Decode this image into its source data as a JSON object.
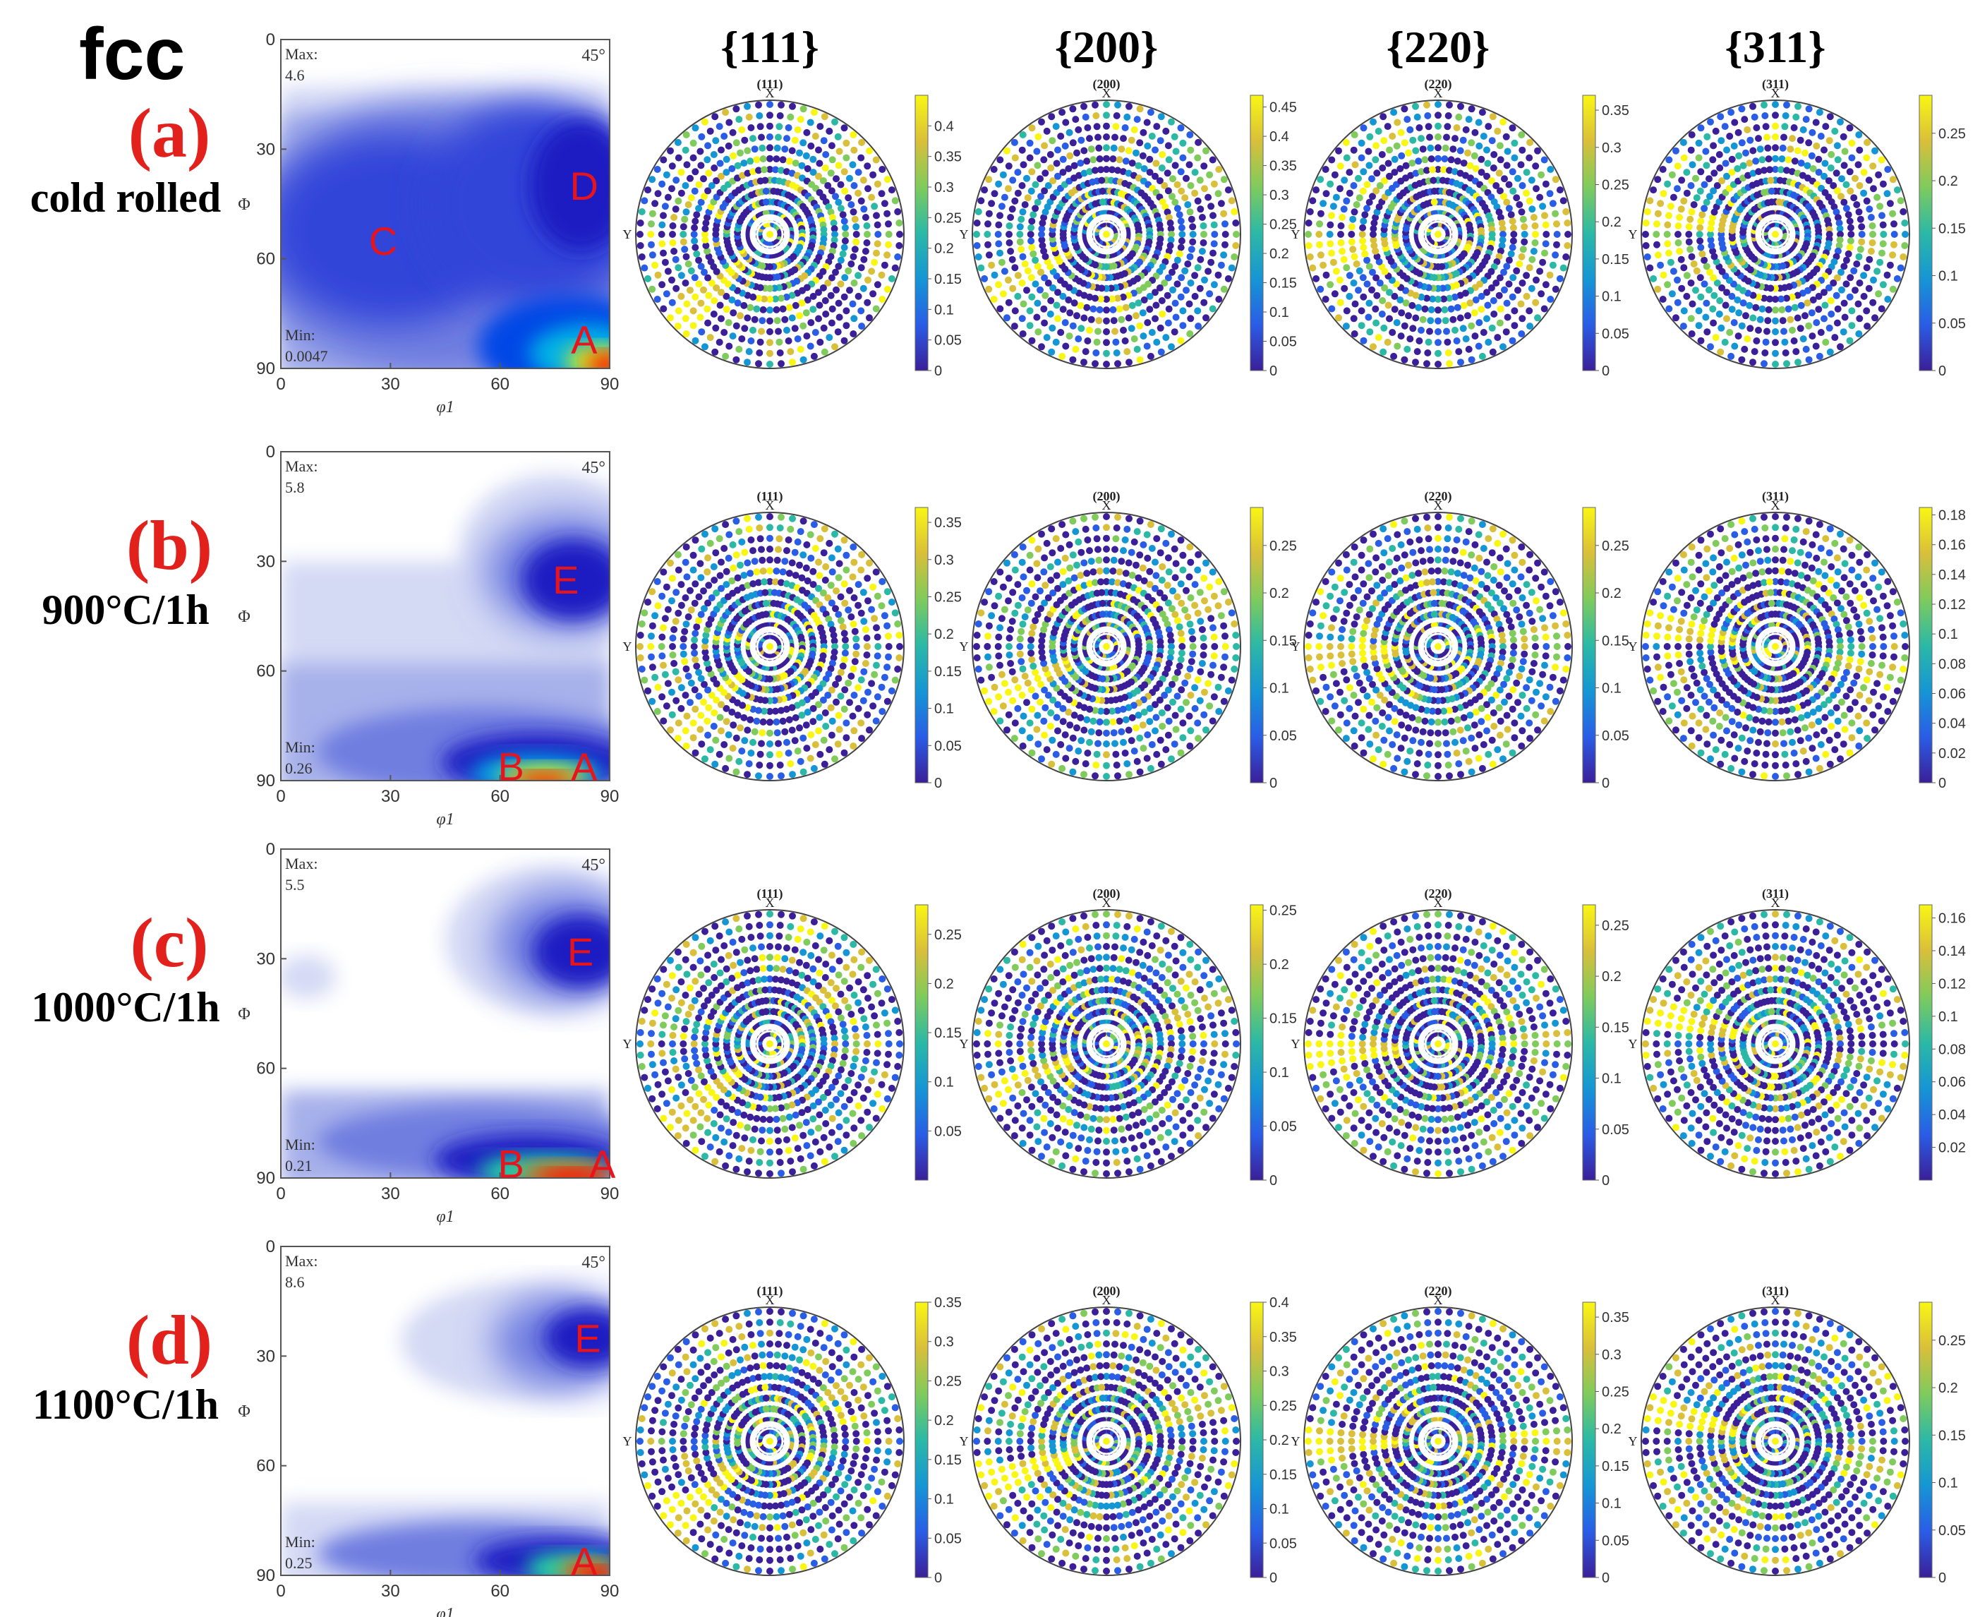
{
  "figure": {
    "phase_label": "fcc",
    "column_headers": [
      "{111}",
      "{200}",
      "{220}",
      "{311}"
    ],
    "odf_axes": {
      "x_label": "φ1",
      "y_label": "Φ",
      "x_ticks": [
        "0",
        "30",
        "60",
        "90"
      ],
      "y_ticks": [
        "0",
        "30",
        "60",
        "90"
      ],
      "section_label": "45°"
    },
    "pole_figure_axes": {
      "x_label": "X",
      "y_label": "Y"
    },
    "colormap": [
      "#3b1f99",
      "#2a5de6",
      "#1596d4",
      "#2bb9a6",
      "#7fcb5c",
      "#d9bf3a",
      "#f9f614"
    ],
    "odf_colormap": [
      "#ffffff",
      "#d4d9f4",
      "#a7b1ea",
      "#6f7ee0",
      "#3344d9",
      "#1a1fc2",
      "#0047e6",
      "#00b2e6",
      "#20f0a0",
      "#f4f000",
      "#ff5500",
      "#ff0000"
    ],
    "rows": [
      {
        "tag": "(a)",
        "condition": "cold rolled",
        "odf": {
          "max_label": "Max:",
          "max_value": "4.6",
          "min_label": "Min:",
          "min_value": "0.0047",
          "components": [
            {
              "letter": "D",
              "phi1": 83,
              "Phi": 40
            },
            {
              "letter": "C",
              "phi1": 28,
              "Phi": 55
            },
            {
              "letter": "A",
              "phi1": 83,
              "Phi": 82
            }
          ]
        },
        "pole_figures": [
          {
            "title": "(111)",
            "colorbar_ticks": [
              "0.4",
              "0.35",
              "0.3",
              "0.25",
              "0.2",
              "0.15",
              "0.1",
              "0.05",
              "0"
            ],
            "max": 0.45
          },
          {
            "title": "(200)",
            "colorbar_ticks": [
              "0.45",
              "0.4",
              "0.35",
              "0.3",
              "0.25",
              "0.2",
              "0.15",
              "0.1",
              "0.05",
              "0"
            ],
            "max": 0.47
          },
          {
            "title": "(220)",
            "colorbar_ticks": [
              "0.35",
              "0.3",
              "0.25",
              "0.2",
              "0.15",
              "0.1",
              "0.05",
              "0"
            ],
            "max": 0.37
          },
          {
            "title": "(311)",
            "colorbar_ticks": [
              "0.25",
              "0.2",
              "0.15",
              "0.1",
              "0.05",
              "0"
            ],
            "max": 0.29
          }
        ]
      },
      {
        "tag": "(b)",
        "condition": "900°C/1h",
        "odf": {
          "max_label": "Max:",
          "max_value": "5.8",
          "min_label": "Min:",
          "min_value": "0.26",
          "components": [
            {
              "letter": "E",
              "phi1": 78,
              "Phi": 35
            },
            {
              "letter": "B",
              "phi1": 63,
              "Phi": 86
            },
            {
              "letter": "A",
              "phi1": 83,
              "Phi": 86
            }
          ]
        },
        "pole_figures": [
          {
            "title": "(111)",
            "colorbar_ticks": [
              "0.35",
              "0.3",
              "0.25",
              "0.2",
              "0.15",
              "0.1",
              "0.05",
              "0"
            ],
            "max": 0.37
          },
          {
            "title": "(200)",
            "colorbar_ticks": [
              "0.25",
              "0.2",
              "0.15",
              "0.1",
              "0.05",
              "0"
            ],
            "max": 0.29
          },
          {
            "title": "(220)",
            "colorbar_ticks": [
              "0.25",
              "0.2",
              "0.15",
              "0.1",
              "0.05",
              "0"
            ],
            "max": 0.29
          },
          {
            "title": "(311)",
            "colorbar_ticks": [
              "0.18",
              "0.16",
              "0.14",
              "0.12",
              "0.1",
              "0.08",
              "0.06",
              "0.04",
              "0.02",
              "0"
            ],
            "max": 0.185
          }
        ]
      },
      {
        "tag": "(c)",
        "condition": "1000°C/1h",
        "odf": {
          "max_label": "Max:",
          "max_value": "5.5",
          "min_label": "Min:",
          "min_value": "0.21",
          "components": [
            {
              "letter": "E",
              "phi1": 82,
              "Phi": 28
            },
            {
              "letter": "B",
              "phi1": 63,
              "Phi": 86
            },
            {
              "letter": "A",
              "phi1": 88,
              "Phi": 86
            }
          ]
        },
        "pole_figures": [
          {
            "title": "(111)",
            "colorbar_ticks": [
              "0.25",
              "0.2",
              "0.15",
              "0.1",
              "0.05"
            ],
            "max": 0.28
          },
          {
            "title": "(200)",
            "colorbar_ticks": [
              "0.25",
              "0.2",
              "0.15",
              "0.1",
              "0.05",
              "0"
            ],
            "max": 0.255
          },
          {
            "title": "(220)",
            "colorbar_ticks": [
              "0.25",
              "0.2",
              "0.15",
              "0.1",
              "0.05",
              "0"
            ],
            "max": 0.27
          },
          {
            "title": "(311)",
            "colorbar_ticks": [
              "0.16",
              "0.14",
              "0.12",
              "0.1",
              "0.08",
              "0.06",
              "0.04",
              "0.02"
            ],
            "max": 0.168
          }
        ]
      },
      {
        "tag": "(d)",
        "condition": "1100°C/1h",
        "odf": {
          "max_label": "Max:",
          "max_value": "8.6",
          "min_label": "Min:",
          "min_value": "0.25",
          "components": [
            {
              "letter": "E",
              "phi1": 84,
              "Phi": 25
            },
            {
              "letter": "A",
              "phi1": 83,
              "Phi": 86
            }
          ]
        },
        "pole_figures": [
          {
            "title": "(111)",
            "colorbar_ticks": [
              "0.35",
              "0.3",
              "0.25",
              "0.2",
              "0.15",
              "0.1",
              "0.05",
              "0"
            ],
            "max": 0.35
          },
          {
            "title": "(200)",
            "colorbar_ticks": [
              "0.4",
              "0.35",
              "0.3",
              "0.25",
              "0.2",
              "0.15",
              "0.1",
              "0.05",
              "0"
            ],
            "max": 0.4
          },
          {
            "title": "(220)",
            "colorbar_ticks": [
              "0.35",
              "0.3",
              "0.25",
              "0.2",
              "0.15",
              "0.1",
              "0.05",
              "0"
            ],
            "max": 0.37
          },
          {
            "title": "(311)",
            "colorbar_ticks": [
              "0.25",
              "0.2",
              "0.15",
              "0.1",
              "0.05",
              "0"
            ],
            "max": 0.29
          }
        ]
      }
    ]
  }
}
